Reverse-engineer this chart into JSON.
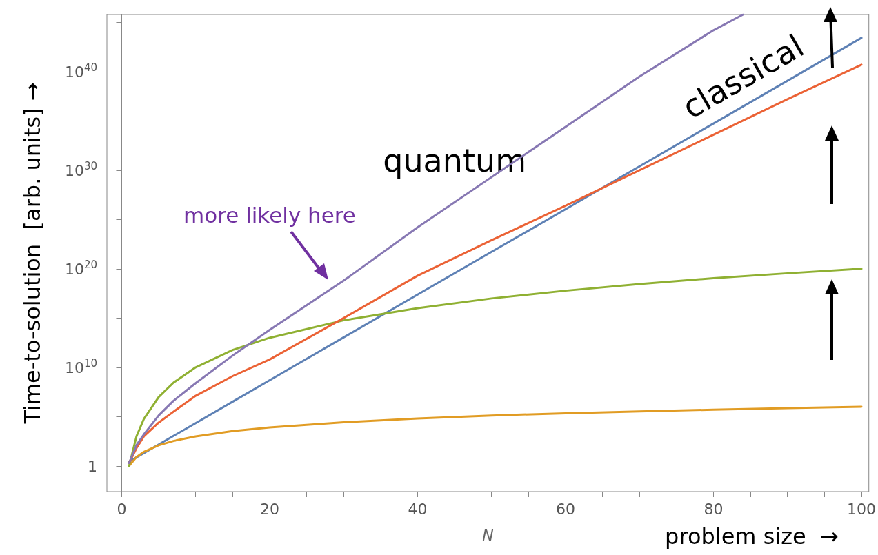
{
  "chart_data": {
    "type": "line",
    "ylabel": "Time-to-solution  [arb. units] →",
    "xlabel": "N",
    "annotations": [
      "quantum",
      "classical",
      "more likely here",
      "problem size  →"
    ],
    "x": [
      1,
      2,
      3,
      5,
      7,
      10,
      15,
      20,
      30,
      40,
      50,
      60,
      70,
      80,
      90,
      100
    ],
    "series": [
      {
        "color": "#5e81b5",
        "values": [
          2.7,
          7.4,
          20,
          150,
          1100,
          22000.0,
          3300000.0,
          490000000.0,
          11000000000000.0,
          2.4e+17,
          5.2e+21,
          1.1e+26,
          2.5e+30,
          5.5e+34,
          1.2e+39,
          2.7e+43
        ]
      },
      {
        "color": "#e19c24",
        "values": [
          1,
          8,
          27,
          125,
          340,
          1000,
          3400,
          8000,
          27000.0,
          64000.0,
          130000.0,
          220000.0,
          340000.0,
          510000.0,
          730000.0,
          1000000.0
        ]
      },
      {
        "color": "#8fb032",
        "values": [
          1,
          1000,
          59000.0,
          9800000.0,
          280000000.0,
          10000000000.0,
          580000000000.0,
          10000000000000.0,
          590000000000000.0,
          1e+16,
          9.8e+16,
          6e+17,
          2.8e+18,
          1.1e+19,
          3.5e+19,
          1e+20
        ]
      },
      {
        "color": "#eb6235",
        "values": [
          2,
          63,
          1000,
          25000.0,
          320000.0,
          13000000.0,
          1300000000.0,
          63000000000.0,
          1000000000000000.0,
          2e+19,
          7.9e+22,
          2.5e+26,
          1e+30,
          4e+33,
          1.6e+37,
          5e+40
        ]
      },
      {
        "color": "#8778b3",
        "x": [
          1,
          2,
          3,
          5,
          7,
          10,
          15,
          20,
          30,
          40,
          50,
          60,
          70,
          80,
          84
        ],
        "values": [
          2,
          130,
          1600,
          130000.0,
          4000000.0,
          250000000.0,
          160000000000.0,
          63000000000000.0,
          6.3e+18,
          1.6e+24,
          2e+29,
          2.5e+34,
          3.2e+39,
          1.6e+44,
          6.3e+45
        ]
      }
    ],
    "log": "y",
    "xlim": [
      -2,
      101
    ],
    "ylim": [
      0.0025,
      6.3e+45
    ],
    "xticks": [
      0,
      {
        "value": 5,
        "label": null
      },
      {
        "value": 10,
        "label": null
      },
      {
        "value": 15,
        "label": null
      },
      20,
      {
        "value": 25,
        "label": null
      },
      {
        "value": 30,
        "label": null
      },
      {
        "value": 35,
        "label": null
      },
      40,
      {
        "value": 45,
        "label": null
      },
      {
        "value": 50,
        "label": null
      },
      {
        "value": 55,
        "label": null
      },
      60,
      {
        "value": 65,
        "label": null
      },
      {
        "value": 70,
        "label": null
      },
      {
        "value": 75,
        "label": null
      },
      80,
      {
        "value": 85,
        "label": null
      },
      {
        "value": 90,
        "label": null
      },
      {
        "value": 95,
        "label": null
      },
      100
    ],
    "yticks": [
      {
        "value": 1,
        "label": "1"
      },
      {
        "value": 100000.0,
        "label": null
      },
      {
        "value": 10000000000.0,
        "label": "10$^{10}$"
      },
      {
        "value": 1000000000000000.0,
        "label": null
      },
      {
        "value": 1e+20,
        "label": "10$^{20}$"
      },
      {
        "value": 1e+25,
        "label": null
      },
      {
        "value": 1e+30,
        "label": "10$^{30}$"
      },
      {
        "value": 1e+35,
        "label": null
      },
      {
        "value": 1e+40,
        "label": "10$^{40}$"
      },
      {
        "value": 1e+45,
        "label": null
      }
    ],
    "marker": "none",
    "line_style": "solid"
  }
}
